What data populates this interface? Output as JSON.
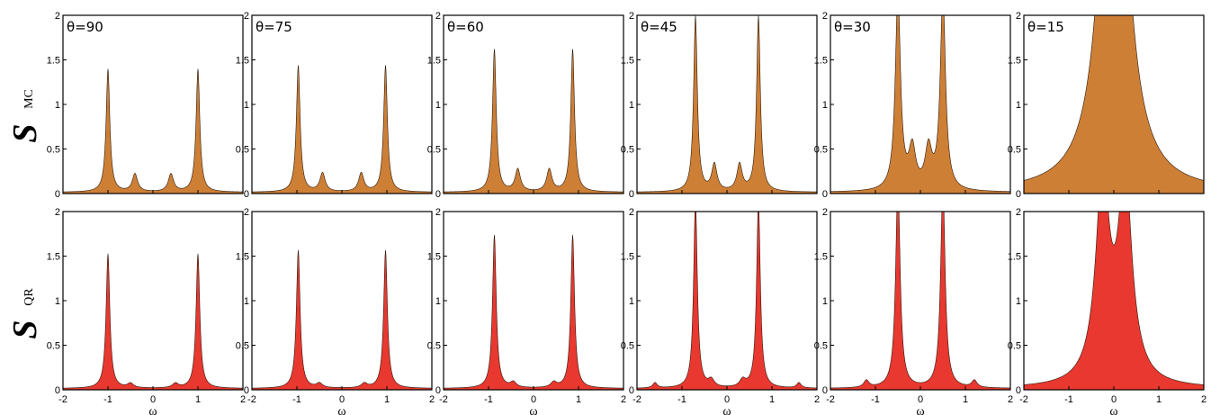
{
  "figure": {
    "row_labels": [
      {
        "main": "S",
        "sub": "MC"
      },
      {
        "main": "S",
        "sub": "QR"
      }
    ],
    "x_axis_label": "ω"
  },
  "chart_data": [
    {
      "type": "area",
      "row": 0,
      "col": 0,
      "annotation": "θ=90",
      "xlim": [
        -2,
        2
      ],
      "ylim": [
        0,
        2
      ],
      "x_ticks": [
        "-2",
        "-1",
        "0",
        "1",
        "2"
      ],
      "y_ticks": [
        "0",
        "0.5",
        "1",
        "1.5",
        "2"
      ],
      "fill_color": "#cd7f36",
      "peaks": [
        {
          "x": -1.0,
          "y": 1.38,
          "w": 0.05
        },
        {
          "x": 1.0,
          "y": 1.38,
          "w": 0.05
        },
        {
          "x": -0.4,
          "y": 0.2,
          "w": 0.07
        },
        {
          "x": 0.4,
          "y": 0.2,
          "w": 0.07
        }
      ]
    },
    {
      "type": "area",
      "row": 0,
      "col": 1,
      "annotation": "θ=75",
      "xlim": [
        -2,
        2
      ],
      "ylim": [
        0,
        2
      ],
      "x_ticks": [
        "-2",
        "-1",
        "0",
        "1",
        "2"
      ],
      "y_ticks": [
        "0",
        "0.5",
        "1",
        "1.5",
        "2"
      ],
      "fill_color": "#cd7f36",
      "peaks": [
        {
          "x": -0.97,
          "y": 1.42,
          "w": 0.05
        },
        {
          "x": 0.97,
          "y": 1.42,
          "w": 0.05
        },
        {
          "x": -0.43,
          "y": 0.21,
          "w": 0.07
        },
        {
          "x": 0.43,
          "y": 0.21,
          "w": 0.07
        }
      ]
    },
    {
      "type": "area",
      "row": 0,
      "col": 2,
      "annotation": "θ=60",
      "xlim": [
        -2,
        2
      ],
      "ylim": [
        0,
        2
      ],
      "x_ticks": [
        "-2",
        "-1",
        "0",
        "1",
        "2"
      ],
      "y_ticks": [
        "0",
        "0.5",
        "1",
        "1.5",
        "2"
      ],
      "fill_color": "#cd7f36",
      "peaks": [
        {
          "x": -0.87,
          "y": 1.6,
          "w": 0.05
        },
        {
          "x": 0.87,
          "y": 1.6,
          "w": 0.05
        },
        {
          "x": -0.35,
          "y": 0.25,
          "w": 0.07
        },
        {
          "x": 0.35,
          "y": 0.25,
          "w": 0.07
        }
      ]
    },
    {
      "type": "area",
      "row": 0,
      "col": 3,
      "annotation": "θ=45",
      "xlim": [
        -2,
        2
      ],
      "ylim": [
        0,
        2
      ],
      "x_ticks": [
        "-2",
        "-1",
        "0",
        "1",
        "2"
      ],
      "y_ticks": [
        "0",
        "0.5",
        "1",
        "1.5",
        "2"
      ],
      "fill_color": "#cd7f36",
      "peaks": [
        {
          "x": -0.7,
          "y": 1.97,
          "w": 0.05
        },
        {
          "x": 0.7,
          "y": 1.97,
          "w": 0.05
        },
        {
          "x": -0.28,
          "y": 0.3,
          "w": 0.07
        },
        {
          "x": 0.28,
          "y": 0.3,
          "w": 0.07
        }
      ]
    },
    {
      "type": "area",
      "row": 0,
      "col": 4,
      "annotation": "θ=30",
      "xlim": [
        -2,
        2
      ],
      "ylim": [
        0,
        2
      ],
      "x_ticks": [
        "-2",
        "-1",
        "0",
        "1",
        "2"
      ],
      "y_ticks": [
        "0",
        "0.5",
        "1",
        "1.5",
        "2"
      ],
      "fill_color": "#cd7f36",
      "peaks": [
        {
          "x": -0.5,
          "y": 2.2,
          "w": 0.07
        },
        {
          "x": 0.5,
          "y": 2.2,
          "w": 0.07
        },
        {
          "x": -0.18,
          "y": 0.45,
          "w": 0.09
        },
        {
          "x": 0.18,
          "y": 0.45,
          "w": 0.09
        }
      ]
    },
    {
      "type": "area",
      "row": 0,
      "col": 5,
      "annotation": "θ=15",
      "xlim": [
        -2,
        2
      ],
      "ylim": [
        0,
        2
      ],
      "x_ticks": [
        "-2",
        "-1",
        "0",
        "1",
        "2"
      ],
      "y_ticks": [
        "0",
        "0.5",
        "1",
        "1.5",
        "2"
      ],
      "fill_color": "#cd7f36",
      "peaks": [
        {
          "x": 0.0,
          "y": 6.0,
          "w": 0.3
        }
      ]
    },
    {
      "type": "area",
      "row": 1,
      "col": 0,
      "annotation": "",
      "xlim": [
        -2,
        2
      ],
      "ylim": [
        0,
        2
      ],
      "x_ticks": [
        "-2",
        "-1",
        "0",
        "1",
        "2"
      ],
      "y_ticks": [
        "0",
        "0.5",
        "1",
        "1.5",
        "2"
      ],
      "fill_color": "#e8382f",
      "peaks": [
        {
          "x": -1.0,
          "y": 1.51,
          "w": 0.05
        },
        {
          "x": 1.0,
          "y": 1.51,
          "w": 0.05
        },
        {
          "x": -0.5,
          "y": 0.05,
          "w": 0.08
        },
        {
          "x": 0.5,
          "y": 0.05,
          "w": 0.08
        }
      ]
    },
    {
      "type": "area",
      "row": 1,
      "col": 1,
      "annotation": "",
      "xlim": [
        -2,
        2
      ],
      "ylim": [
        0,
        2
      ],
      "x_ticks": [
        "-2",
        "-1",
        "0",
        "1",
        "2"
      ],
      "y_ticks": [
        "0",
        "0.5",
        "1",
        "1.5",
        "2"
      ],
      "fill_color": "#e8382f",
      "peaks": [
        {
          "x": -0.97,
          "y": 1.55,
          "w": 0.05
        },
        {
          "x": 0.97,
          "y": 1.55,
          "w": 0.05
        },
        {
          "x": -0.5,
          "y": 0.05,
          "w": 0.08
        },
        {
          "x": 0.5,
          "y": 0.05,
          "w": 0.08
        }
      ]
    },
    {
      "type": "area",
      "row": 1,
      "col": 2,
      "annotation": "",
      "xlim": [
        -2,
        2
      ],
      "ylim": [
        0,
        2
      ],
      "x_ticks": [
        "-2",
        "-1",
        "0",
        "1",
        "2"
      ],
      "y_ticks": [
        "0",
        "0.5",
        "1",
        "1.5",
        "2"
      ],
      "fill_color": "#e8382f",
      "peaks": [
        {
          "x": -0.87,
          "y": 1.72,
          "w": 0.05
        },
        {
          "x": 0.87,
          "y": 1.72,
          "w": 0.05
        },
        {
          "x": -0.45,
          "y": 0.06,
          "w": 0.08
        },
        {
          "x": 0.45,
          "y": 0.06,
          "w": 0.08
        }
      ]
    },
    {
      "type": "area",
      "row": 1,
      "col": 3,
      "annotation": "",
      "xlim": [
        -2,
        2
      ],
      "ylim": [
        0,
        2
      ],
      "x_ticks": [
        "-2",
        "-1",
        "0",
        "1",
        "2"
      ],
      "y_ticks": [
        "0",
        "0.5",
        "1",
        "1.5",
        "2"
      ],
      "fill_color": "#e8382f",
      "peaks": [
        {
          "x": -0.7,
          "y": 2.1,
          "w": 0.05
        },
        {
          "x": 0.7,
          "y": 2.1,
          "w": 0.05
        },
        {
          "x": -0.35,
          "y": 0.08,
          "w": 0.08
        },
        {
          "x": 0.35,
          "y": 0.08,
          "w": 0.08
        },
        {
          "x": -1.6,
          "y": 0.06,
          "w": 0.06
        },
        {
          "x": 1.6,
          "y": 0.06,
          "w": 0.06
        }
      ]
    },
    {
      "type": "area",
      "row": 1,
      "col": 4,
      "annotation": "",
      "xlim": [
        -2,
        2
      ],
      "ylim": [
        0,
        2
      ],
      "x_ticks": [
        "-2",
        "-1",
        "0",
        "1",
        "2"
      ],
      "y_ticks": [
        "0",
        "0.5",
        "1",
        "1.5",
        "2"
      ],
      "fill_color": "#e8382f",
      "peaks": [
        {
          "x": -0.5,
          "y": 2.3,
          "w": 0.06
        },
        {
          "x": 0.5,
          "y": 2.3,
          "w": 0.06
        },
        {
          "x": -1.2,
          "y": 0.08,
          "w": 0.07
        },
        {
          "x": 1.2,
          "y": 0.08,
          "w": 0.07
        }
      ]
    },
    {
      "type": "area",
      "row": 1,
      "col": 5,
      "annotation": "",
      "xlim": [
        -2,
        2
      ],
      "ylim": [
        0,
        2
      ],
      "x_ticks": [
        "-2",
        "-1",
        "0",
        "1",
        "2"
      ],
      "y_ticks": [
        "0",
        "0.5",
        "1",
        "1.5",
        "2"
      ],
      "fill_color": "#e8382f",
      "peaks": [
        {
          "x": -0.25,
          "y": 1.9,
          "w": 0.2
        },
        {
          "x": 0.25,
          "y": 1.9,
          "w": 0.2
        },
        {
          "x": -0.25,
          "y": 0.55,
          "w": 0.09
        },
        {
          "x": 0.25,
          "y": 0.55,
          "w": 0.09
        }
      ]
    }
  ]
}
